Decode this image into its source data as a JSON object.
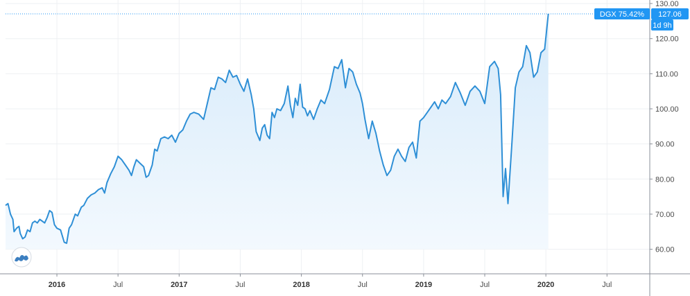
{
  "chart_data": {
    "type": "area",
    "title": "",
    "xlabel": "",
    "ylabel": "",
    "ylim": [
      53,
      131
    ],
    "y_ticks": [
      "60.00",
      "70.00",
      "80.00",
      "90.00",
      "100.00",
      "110.00",
      "120.00",
      "130.00"
    ],
    "x_ticks": [
      {
        "label": "2016",
        "year": true,
        "t": 2016.0
      },
      {
        "label": "Jul",
        "year": false,
        "t": 2016.5
      },
      {
        "label": "2017",
        "year": true,
        "t": 2017.0
      },
      {
        "label": "Jul",
        "year": false,
        "t": 2017.5
      },
      {
        "label": "2018",
        "year": true,
        "t": 2018.0
      },
      {
        "label": "Jul",
        "year": false,
        "t": 2018.5
      },
      {
        "label": "2019",
        "year": true,
        "t": 2019.0
      },
      {
        "label": "Jul",
        "year": false,
        "t": 2019.5
      },
      {
        "label": "2020",
        "year": true,
        "t": 2020.0
      },
      {
        "label": "Jul",
        "year": false,
        "t": 2020.5
      }
    ],
    "xlim": [
      2015.58,
      2020.85
    ],
    "grid": true,
    "line_color": "#2e8fd6",
    "fill_color": "#d6eafa",
    "last_value_tag": {
      "symbol_change": "DGX 75.42%",
      "value": "127.06",
      "countdown": "1d 9h",
      "color": "#2196f3"
    },
    "series": [
      {
        "points": [
          [
            2015.58,
            72.5
          ],
          [
            2015.6,
            73.0
          ],
          [
            2015.62,
            70.0
          ],
          [
            2015.64,
            68.5
          ],
          [
            2015.65,
            65.0
          ],
          [
            2015.67,
            66.0
          ],
          [
            2015.69,
            66.5
          ],
          [
            2015.7,
            64.5
          ],
          [
            2015.72,
            63.0
          ],
          [
            2015.74,
            63.5
          ],
          [
            2015.76,
            65.5
          ],
          [
            2015.78,
            65.0
          ],
          [
            2015.8,
            67.5
          ],
          [
            2015.82,
            68.0
          ],
          [
            2015.84,
            67.5
          ],
          [
            2015.86,
            68.5
          ],
          [
            2015.88,
            68.0
          ],
          [
            2015.9,
            67.5
          ],
          [
            2015.92,
            69.0
          ],
          [
            2015.94,
            71.0
          ],
          [
            2015.96,
            70.5
          ],
          [
            2015.98,
            67.0
          ],
          [
            2016.0,
            66.0
          ],
          [
            2016.03,
            65.5
          ],
          [
            2016.06,
            62.0
          ],
          [
            2016.08,
            61.7
          ],
          [
            2016.1,
            66.0
          ],
          [
            2016.12,
            67.0
          ],
          [
            2016.15,
            70.0
          ],
          [
            2016.17,
            69.5
          ],
          [
            2016.2,
            72.0
          ],
          [
            2016.22,
            72.5
          ],
          [
            2016.25,
            74.5
          ],
          [
            2016.28,
            75.5
          ],
          [
            2016.31,
            76.0
          ],
          [
            2016.34,
            77.0
          ],
          [
            2016.37,
            77.5
          ],
          [
            2016.39,
            76.0
          ],
          [
            2016.41,
            79.0
          ],
          [
            2016.44,
            81.5
          ],
          [
            2016.47,
            83.5
          ],
          [
            2016.5,
            86.5
          ],
          [
            2016.53,
            85.5
          ],
          [
            2016.56,
            84.0
          ],
          [
            2016.59,
            82.5
          ],
          [
            2016.61,
            81.0
          ],
          [
            2016.63,
            83.5
          ],
          [
            2016.65,
            85.5
          ],
          [
            2016.68,
            84.5
          ],
          [
            2016.71,
            83.5
          ],
          [
            2016.73,
            80.5
          ],
          [
            2016.75,
            81.0
          ],
          [
            2016.78,
            84.0
          ],
          [
            2016.8,
            88.5
          ],
          [
            2016.82,
            88.0
          ],
          [
            2016.85,
            91.5
          ],
          [
            2016.88,
            92.0
          ],
          [
            2016.91,
            91.5
          ],
          [
            2016.94,
            92.5
          ],
          [
            2016.97,
            90.5
          ],
          [
            2017.0,
            93.0
          ],
          [
            2017.03,
            94.0
          ],
          [
            2017.06,
            96.5
          ],
          [
            2017.09,
            98.5
          ],
          [
            2017.12,
            99.0
          ],
          [
            2017.16,
            98.5
          ],
          [
            2017.2,
            97.0
          ],
          [
            2017.23,
            101.5
          ],
          [
            2017.26,
            106.0
          ],
          [
            2017.29,
            105.5
          ],
          [
            2017.32,
            109.0
          ],
          [
            2017.35,
            108.5
          ],
          [
            2017.38,
            107.5
          ],
          [
            2017.41,
            111.0
          ],
          [
            2017.44,
            109.0
          ],
          [
            2017.47,
            109.5
          ],
          [
            2017.5,
            107.0
          ],
          [
            2017.53,
            105.0
          ],
          [
            2017.56,
            108.5
          ],
          [
            2017.59,
            104.0
          ],
          [
            2017.61,
            100.0
          ],
          [
            2017.63,
            93.5
          ],
          [
            2017.66,
            91.0
          ],
          [
            2017.68,
            94.5
          ],
          [
            2017.7,
            95.5
          ],
          [
            2017.72,
            92.5
          ],
          [
            2017.74,
            91.5
          ],
          [
            2017.76,
            99.0
          ],
          [
            2017.78,
            97.5
          ],
          [
            2017.8,
            100.0
          ],
          [
            2017.83,
            99.5
          ],
          [
            2017.86,
            101.5
          ],
          [
            2017.89,
            106.5
          ],
          [
            2017.91,
            101.0
          ],
          [
            2017.93,
            97.5
          ],
          [
            2017.95,
            103.0
          ],
          [
            2017.97,
            101.0
          ],
          [
            2017.99,
            107.0
          ],
          [
            2018.01,
            100.5
          ],
          [
            2018.03,
            100.0
          ],
          [
            2018.05,
            98.0
          ],
          [
            2018.07,
            99.5
          ],
          [
            2018.1,
            97.0
          ],
          [
            2018.13,
            100.0
          ],
          [
            2018.16,
            102.5
          ],
          [
            2018.19,
            101.5
          ],
          [
            2018.23,
            105.5
          ],
          [
            2018.27,
            112.0
          ],
          [
            2018.3,
            111.5
          ],
          [
            2018.33,
            114.0
          ],
          [
            2018.36,
            106.0
          ],
          [
            2018.39,
            111.5
          ],
          [
            2018.42,
            110.5
          ],
          [
            2018.45,
            107.0
          ],
          [
            2018.48,
            104.5
          ],
          [
            2018.5,
            101.5
          ],
          [
            2018.52,
            97.0
          ],
          [
            2018.55,
            91.5
          ],
          [
            2018.58,
            96.5
          ],
          [
            2018.61,
            93.0
          ],
          [
            2018.64,
            88.0
          ],
          [
            2018.67,
            84.0
          ],
          [
            2018.7,
            81.0
          ],
          [
            2018.73,
            82.5
          ],
          [
            2018.76,
            86.5
          ],
          [
            2018.79,
            88.5
          ],
          [
            2018.82,
            86.5
          ],
          [
            2018.85,
            85.0
          ],
          [
            2018.88,
            89.0
          ],
          [
            2018.91,
            90.5
          ],
          [
            2018.94,
            86.0
          ],
          [
            2018.97,
            96.5
          ],
          [
            2019.0,
            97.5
          ],
          [
            2019.03,
            99.0
          ],
          [
            2019.06,
            100.5
          ],
          [
            2019.09,
            102.0
          ],
          [
            2019.12,
            100.0
          ],
          [
            2019.15,
            102.5
          ],
          [
            2019.18,
            101.5
          ],
          [
            2019.22,
            103.5
          ],
          [
            2019.26,
            107.5
          ],
          [
            2019.3,
            104.5
          ],
          [
            2019.34,
            101.0
          ],
          [
            2019.38,
            105.0
          ],
          [
            2019.42,
            106.5
          ],
          [
            2019.46,
            105.0
          ],
          [
            2019.5,
            101.5
          ],
          [
            2019.54,
            112.0
          ],
          [
            2019.58,
            113.5
          ],
          [
            2019.61,
            111.5
          ],
          [
            2019.63,
            104.0
          ],
          [
            2019.65,
            75.0
          ],
          [
            2019.67,
            83.0
          ],
          [
            2019.69,
            73.0
          ],
          [
            2019.72,
            89.0
          ],
          [
            2019.75,
            106.0
          ],
          [
            2019.78,
            110.5
          ],
          [
            2019.81,
            112.0
          ],
          [
            2019.84,
            118.0
          ],
          [
            2019.87,
            116.0
          ],
          [
            2019.9,
            109.0
          ],
          [
            2019.93,
            110.5
          ],
          [
            2019.96,
            116.0
          ],
          [
            2019.99,
            117.0
          ],
          [
            2020.02,
            127.06
          ]
        ]
      }
    ]
  }
}
